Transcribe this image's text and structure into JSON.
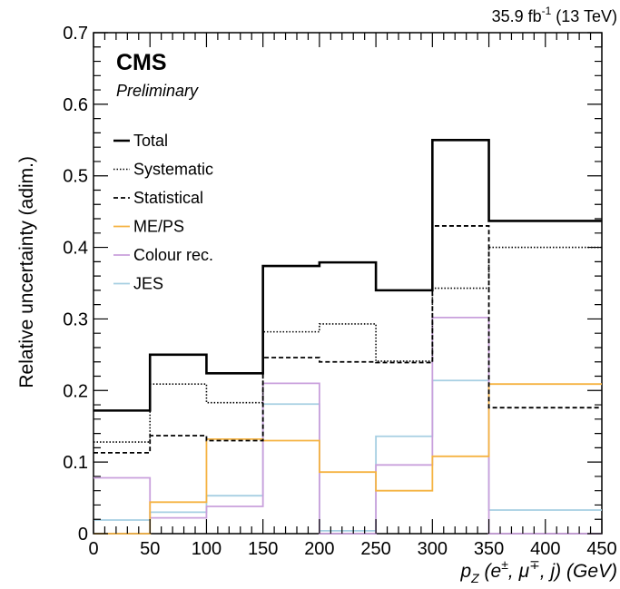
{
  "header": {
    "lumi_value": "35.9 fb",
    "lumi_exp": "-1",
    "lumi_energy": " (13 TeV)",
    "experiment": "CMS",
    "status": "Preliminary"
  },
  "chart_data": {
    "type": "line",
    "style": "step-histogram",
    "xlabel": {
      "var": "p",
      "sub": "Z",
      "args": " (e",
      "sup1": "±",
      "mid": ", μ",
      "sup2": "∓",
      "tail": ", j) (GeV)"
    },
    "ylabel": "Relative uncertainty (adim.)",
    "xlim": [
      0,
      450
    ],
    "ylim": [
      0,
      0.7
    ],
    "bin_edges": [
      0,
      50,
      100,
      150,
      200,
      250,
      300,
      350,
      450
    ],
    "x_ticks": [
      0,
      50,
      100,
      150,
      200,
      250,
      300,
      350,
      400,
      450
    ],
    "x_tick_labels": [
      "0",
      "50",
      "100",
      "150",
      "200",
      "250",
      "300",
      "350",
      "400",
      "450"
    ],
    "y_ticks": [
      0,
      0.1,
      0.2,
      0.3,
      0.4,
      0.5,
      0.6,
      0.7
    ],
    "y_tick_labels": [
      "0",
      "0.1",
      "0.2",
      "0.3",
      "0.4",
      "0.5",
      "0.6",
      "0.7"
    ],
    "legend_position": "top-left",
    "grid": false,
    "series": [
      {
        "name": "Total",
        "style": "solid-thick",
        "color": "#000000",
        "values": [
          0.172,
          0.25,
          0.224,
          0.374,
          0.379,
          0.34,
          0.55,
          0.437
        ]
      },
      {
        "name": "Systematic",
        "style": "dotted",
        "color": "#000000",
        "values": [
          0.128,
          0.209,
          0.183,
          0.282,
          0.293,
          0.241,
          0.343,
          0.4
        ]
      },
      {
        "name": "Statistical",
        "style": "dashed",
        "color": "#000000",
        "values": [
          0.113,
          0.137,
          0.13,
          0.246,
          0.24,
          0.239,
          0.43,
          0.176
        ]
      },
      {
        "name": "ME/PS",
        "style": "solid",
        "color": "#f5b342",
        "values": [
          0.0,
          0.044,
          0.132,
          0.13,
          0.086,
          0.06,
          0.108,
          0.209
        ]
      },
      {
        "name": "Colour rec.",
        "style": "solid",
        "color": "#c9a0dc",
        "values": [
          0.078,
          0.022,
          0.038,
          0.21,
          0.0,
          0.096,
          0.302,
          0.0
        ]
      },
      {
        "name": "JES",
        "style": "solid",
        "color": "#a6cfe2",
        "values": [
          0.019,
          0.03,
          0.053,
          0.181,
          0.004,
          0.136,
          0.214,
          0.033
        ]
      }
    ]
  }
}
